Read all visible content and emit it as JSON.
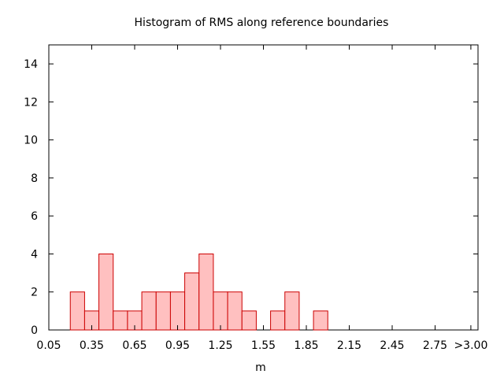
{
  "chart_data": {
    "type": "bar",
    "title": "Histogram of RMS along reference boundaries",
    "xlabel": "m",
    "ylabel": "",
    "bin_width": 0.1,
    "xlim": [
      0.05,
      3.05
    ],
    "ylim": [
      0,
      15
    ],
    "x_ticks": [
      {
        "value": 0.05,
        "label": "0.05"
      },
      {
        "value": 0.35,
        "label": "0.35"
      },
      {
        "value": 0.65,
        "label": "0.65"
      },
      {
        "value": 0.95,
        "label": "0.95"
      },
      {
        "value": 1.25,
        "label": "1.25"
      },
      {
        "value": 1.55,
        "label": "1.55"
      },
      {
        "value": 1.85,
        "label": "1.85"
      },
      {
        "value": 2.15,
        "label": "2.15"
      },
      {
        "value": 2.45,
        "label": "2.45"
      },
      {
        "value": 2.75,
        "label": "2.75"
      },
      {
        "value": 3.0,
        "label": ">3.00"
      }
    ],
    "y_ticks": [
      {
        "value": 0,
        "label": "0"
      },
      {
        "value": 2,
        "label": "2"
      },
      {
        "value": 4,
        "label": "4"
      },
      {
        "value": 6,
        "label": "6"
      },
      {
        "value": 8,
        "label": "8"
      },
      {
        "value": 10,
        "label": "10"
      },
      {
        "value": 12,
        "label": "12"
      },
      {
        "value": 14,
        "label": "14"
      }
    ],
    "bins": [
      {
        "center": 0.25,
        "count": 2
      },
      {
        "center": 0.35,
        "count": 1
      },
      {
        "center": 0.45,
        "count": 4
      },
      {
        "center": 0.55,
        "count": 1
      },
      {
        "center": 0.65,
        "count": 1
      },
      {
        "center": 0.75,
        "count": 2
      },
      {
        "center": 0.85,
        "count": 2
      },
      {
        "center": 0.95,
        "count": 2
      },
      {
        "center": 1.05,
        "count": 3
      },
      {
        "center": 1.15,
        "count": 4
      },
      {
        "center": 1.25,
        "count": 2
      },
      {
        "center": 1.35,
        "count": 2
      },
      {
        "center": 1.45,
        "count": 1
      },
      {
        "center": 1.65,
        "count": 1
      },
      {
        "center": 1.75,
        "count": 2
      },
      {
        "center": 1.95,
        "count": 1
      }
    ],
    "grid": false,
    "colors": {
      "bar_fill": "#ffc0c0",
      "bar_stroke": "#cc0000",
      "axis": "#000000"
    }
  }
}
